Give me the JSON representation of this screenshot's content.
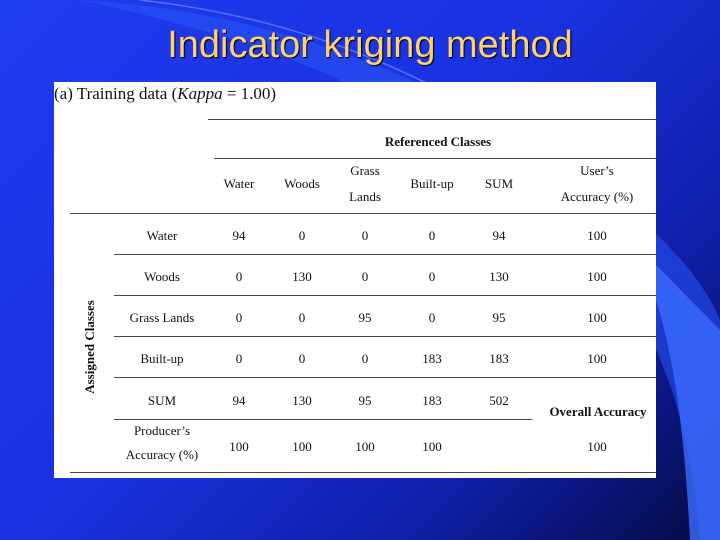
{
  "slide": {
    "title": "Indicator kriging method"
  },
  "figure": {
    "caption_prefix": "(a) Training data (",
    "caption_italic": "Kappa",
    "caption_suffix": " = 1.00)",
    "referenced_classes": "Referenced Classes",
    "assigned_classes": "Assigned Classes",
    "columns": {
      "water": "Water",
      "woods": "Woods",
      "grass_1": "Grass",
      "grass_2": "Lands",
      "builtup": "Built-up",
      "sum": "SUM",
      "users_1": "User’s",
      "users_2": "Accuracy (%)"
    },
    "rows": [
      {
        "label": "Water",
        "cells": [
          "94",
          "0",
          "0",
          "0",
          "94",
          "100"
        ]
      },
      {
        "label": "Woods",
        "cells": [
          "0",
          "130",
          "0",
          "0",
          "130",
          "100"
        ]
      },
      {
        "label": "Grass Lands",
        "cells": [
          "0",
          "0",
          "95",
          "0",
          "95",
          "100"
        ]
      },
      {
        "label": "Built-up",
        "cells": [
          "0",
          "0",
          "0",
          "183",
          "183",
          "100"
        ]
      },
      {
        "label": "SUM",
        "cells": [
          "94",
          "130",
          "95",
          "183",
          "502"
        ]
      }
    ],
    "overall_label": "Overall Accuracy",
    "producers": {
      "label_1": "Producer’s",
      "label_2": "Accuracy (%)",
      "cells": [
        "100",
        "100",
        "100",
        "100"
      ],
      "overall_value": "100"
    }
  }
}
